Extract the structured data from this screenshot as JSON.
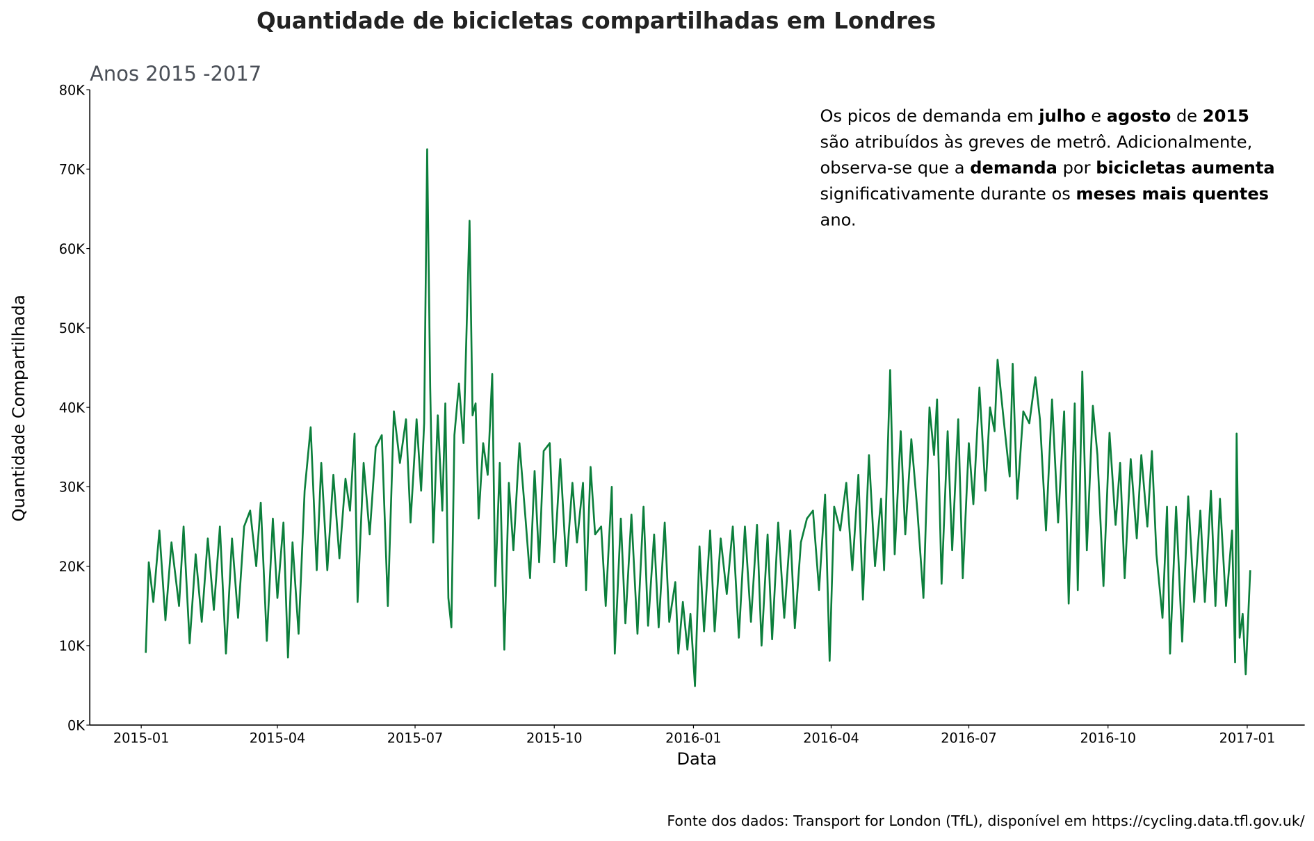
{
  "chart_data": {
    "type": "line",
    "title": "Quantidade de bicicletas compartilhadas em Londres",
    "subtitle": "Anos 2015 -2017",
    "x_label": "Data",
    "y_label": "Quantidade Compartilhada",
    "source": "Fonte dos dados: Transport for London (TfL), disponível em https://cycling.data.tfl.gov.uk/",
    "annotation": [
      [
        {
          "text": "Os picos de demanda em ",
          "bold": false
        },
        {
          "text": "julho",
          "bold": true
        },
        {
          "text": " e ",
          "bold": false
        },
        {
          "text": "agosto",
          "bold": true
        },
        {
          "text": " de ",
          "bold": false
        },
        {
          "text": "2015",
          "bold": true
        }
      ],
      [
        {
          "text": "são atribuídos às greves de metrô. Adicionalmente,",
          "bold": false
        }
      ],
      [
        {
          "text": "observa-se que a ",
          "bold": false
        },
        {
          "text": "demanda",
          "bold": true
        },
        {
          "text": " por ",
          "bold": false
        },
        {
          "text": "bicicletas aumenta",
          "bold": true
        }
      ],
      [
        {
          "text": "significativamente durante os ",
          "bold": false
        },
        {
          "text": "meses mais quentes",
          "bold": true
        }
      ],
      [
        {
          "text": "ano.",
          "bold": false
        }
      ]
    ],
    "xlim": [
      -34,
      769
    ],
    "xticks": [
      {
        "value": 0,
        "label": "2015-01"
      },
      {
        "value": 90,
        "label": "2015-04"
      },
      {
        "value": 181,
        "label": "2015-07"
      },
      {
        "value": 273,
        "label": "2015-10"
      },
      {
        "value": 365,
        "label": "2016-01"
      },
      {
        "value": 456,
        "label": "2016-04"
      },
      {
        "value": 547,
        "label": "2016-07"
      },
      {
        "value": 639,
        "label": "2016-10"
      },
      {
        "value": 731,
        "label": "2017-01"
      }
    ],
    "ylim": [
      0,
      80000
    ],
    "yticks": [
      {
        "value": 0,
        "label": "0K"
      },
      {
        "value": 10000,
        "label": "10K"
      },
      {
        "value": 20000,
        "label": "20K"
      },
      {
        "value": 30000,
        "label": "30K"
      },
      {
        "value": 40000,
        "label": "40K"
      },
      {
        "value": 50000,
        "label": "50K"
      },
      {
        "value": 60000,
        "label": "60K"
      },
      {
        "value": 70000,
        "label": "70K"
      },
      {
        "value": 80000,
        "label": "80K"
      }
    ],
    "grid": false,
    "x": [
      3,
      5,
      8,
      12,
      16,
      20,
      25,
      28,
      32,
      36,
      40,
      44,
      48,
      52,
      56,
      60,
      64,
      68,
      72,
      76,
      79,
      83,
      87,
      90,
      94,
      97,
      100,
      104,
      108,
      112,
      116,
      119,
      123,
      127,
      131,
      135,
      138,
      141,
      143,
      147,
      151,
      155,
      159,
      163,
      167,
      171,
      175,
      178,
      182,
      185,
      187,
      189,
      191,
      193,
      196,
      199,
      201,
      203,
      205,
      207,
      210,
      213,
      217,
      219,
      221,
      223,
      226,
      229,
      232,
      234,
      237,
      240,
      243,
      246,
      250,
      254,
      257,
      260,
      263,
      266,
      270,
      273,
      277,
      281,
      285,
      288,
      292,
      294,
      297,
      300,
      304,
      307,
      311,
      313,
      317,
      320,
      324,
      328,
      332,
      335,
      339,
      342,
      346,
      349,
      353,
      355,
      358,
      361,
      363,
      366,
      369,
      372,
      376,
      379,
      383,
      387,
      391,
      395,
      399,
      403,
      407,
      410,
      414,
      417,
      421,
      425,
      429,
      432,
      436,
      440,
      444,
      448,
      452,
      455,
      458,
      462,
      466,
      470,
      474,
      477,
      481,
      485,
      489,
      491,
      495,
      498,
      502,
      505,
      509,
      513,
      517,
      521,
      524,
      526,
      529,
      533,
      536,
      540,
      543,
      547,
      550,
      554,
      558,
      561,
      564,
      566,
      570,
      574,
      576,
      579,
      583,
      587,
      591,
      594,
      598,
      602,
      606,
      610,
      613,
      617,
      619,
      622,
      625,
      629,
      632,
      636,
      640,
      644,
      647,
      650,
      654,
      658,
      661,
      665,
      668,
      671,
      675,
      678,
      680,
      684,
      688,
      692,
      696,
      700,
      703,
      707,
      710,
      713,
      717,
      721,
      723,
      724,
      726,
      728,
      730,
      733
    ],
    "series": [
      {
        "name": "Quantidade",
        "color": "#0c7f3c",
        "values": [
          9100,
          20500,
          15500,
          24500,
          13200,
          23000,
          15000,
          25000,
          10300,
          21500,
          13000,
          23500,
          14500,
          25000,
          9000,
          23500,
          13500,
          25000,
          27000,
          20000,
          28000,
          10600,
          26000,
          16000,
          25500,
          8500,
          23000,
          11500,
          29500,
          37500,
          19500,
          33000,
          19500,
          31500,
          21000,
          31000,
          27000,
          36700,
          15500,
          33000,
          24000,
          35000,
          36500,
          15000,
          39500,
          33000,
          38500,
          25500,
          38500,
          29500,
          38000,
          72500,
          42500,
          23000,
          39000,
          27000,
          40500,
          16000,
          12300,
          36500,
          43000,
          35500,
          63500,
          39000,
          40500,
          26000,
          35500,
          31500,
          44200,
          17500,
          33000,
          9500,
          30500,
          22000,
          35500,
          26000,
          18500,
          32000,
          20500,
          34500,
          35500,
          20500,
          33500,
          20000,
          30500,
          23000,
          30500,
          17000,
          32500,
          24000,
          25000,
          15000,
          30000,
          9000,
          26000,
          12800,
          26500,
          11500,
          27500,
          12500,
          24000,
          12300,
          25500,
          13000,
          18000,
          9000,
          15500,
          9500,
          14000,
          4900,
          22500,
          11800,
          24500,
          11800,
          23500,
          16500,
          25000,
          11000,
          25000,
          13000,
          25200,
          10000,
          24000,
          10800,
          25500,
          13500,
          24500,
          12200,
          23000,
          26000,
          27000,
          17000,
          29000,
          8100,
          27500,
          24500,
          30500,
          19500,
          31500,
          15800,
          34000,
          20000,
          28500,
          19500,
          44700,
          21500,
          37000,
          24000,
          36000,
          27000,
          16000,
          40000,
          34000,
          41000,
          17800,
          37000,
          22000,
          38500,
          18500,
          35500,
          27800,
          42500,
          29500,
          40000,
          37000,
          46000,
          38500,
          31300,
          45500,
          28500,
          39500,
          38000,
          43800,
          38500,
          24500,
          41000,
          25500,
          39500,
          15300,
          40500,
          17000,
          44500,
          22000,
          40200,
          34000,
          17500,
          36800,
          25200,
          33000,
          18500,
          33500,
          23500,
          34000,
          25000,
          34500,
          21500,
          13500,
          27500,
          9000,
          27500,
          10500,
          28800,
          15500,
          27000,
          15500,
          29500,
          15000,
          28500,
          15000,
          24500,
          7900,
          36700,
          11000,
          14000,
          6400,
          19500
        ]
      }
    ]
  }
}
